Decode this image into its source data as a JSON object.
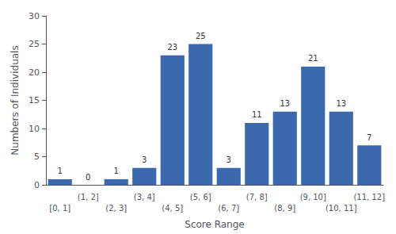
{
  "chart_data": {
    "type": "bar",
    "categories": [
      "[0, 1]",
      "(1, 2]",
      "(2, 3]",
      "(3, 4]",
      "(4, 5]",
      "(5, 6]",
      "(6, 7]",
      "(7, 8]",
      "(8, 9]",
      "(9, 10]",
      "(10, 11]",
      "(11, 12]"
    ],
    "values": [
      1,
      0,
      1,
      3,
      23,
      25,
      3,
      11,
      13,
      21,
      13,
      7
    ],
    "color": "#3A6AAD",
    "xlabel": "Score Range",
    "ylabel": "Numbers of Individuals",
    "ylim": [
      0,
      30
    ],
    "yticks": [
      0,
      5,
      10,
      15,
      20,
      25,
      30
    ],
    "data_labels": true,
    "grid": false
  }
}
